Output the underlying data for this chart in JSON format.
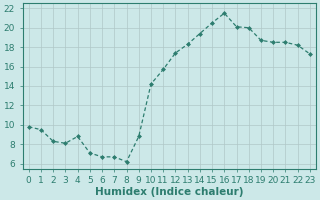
{
  "x": [
    0,
    1,
    2,
    3,
    4,
    5,
    6,
    7,
    8,
    9,
    10,
    11,
    12,
    13,
    14,
    15,
    16,
    17,
    18,
    19,
    20,
    21,
    22,
    23
  ],
  "y": [
    9.8,
    9.5,
    8.3,
    8.1,
    8.8,
    7.1,
    6.7,
    6.7,
    6.2,
    8.8,
    14.2,
    15.7,
    17.4,
    18.3,
    19.4,
    20.5,
    21.5,
    20.1,
    20.0,
    18.7,
    18.5,
    18.5,
    18.2,
    17.3
  ],
  "line_color": "#2d7d6f",
  "marker": "D",
  "marker_size": 2.0,
  "bg_color": "#cce8e8",
  "grid_color": "#b0c8c8",
  "xlabel": "Humidex (Indice chaleur)",
  "xlim": [
    -0.5,
    23.5
  ],
  "ylim": [
    5.5,
    22.5
  ],
  "yticks": [
    6,
    8,
    10,
    12,
    14,
    16,
    18,
    20,
    22
  ],
  "xticks": [
    0,
    1,
    2,
    3,
    4,
    5,
    6,
    7,
    8,
    9,
    10,
    11,
    12,
    13,
    14,
    15,
    16,
    17,
    18,
    19,
    20,
    21,
    22,
    23
  ],
  "xtick_labels": [
    "0",
    "1",
    "2",
    "3",
    "4",
    "5",
    "6",
    "7",
    "8",
    "9",
    "10",
    "11",
    "12",
    "13",
    "14",
    "15",
    "16",
    "17",
    "18",
    "19",
    "20",
    "21",
    "22",
    "23"
  ],
  "tick_fontsize": 6.5,
  "xlabel_fontsize": 7.5,
  "line_width": 0.9
}
